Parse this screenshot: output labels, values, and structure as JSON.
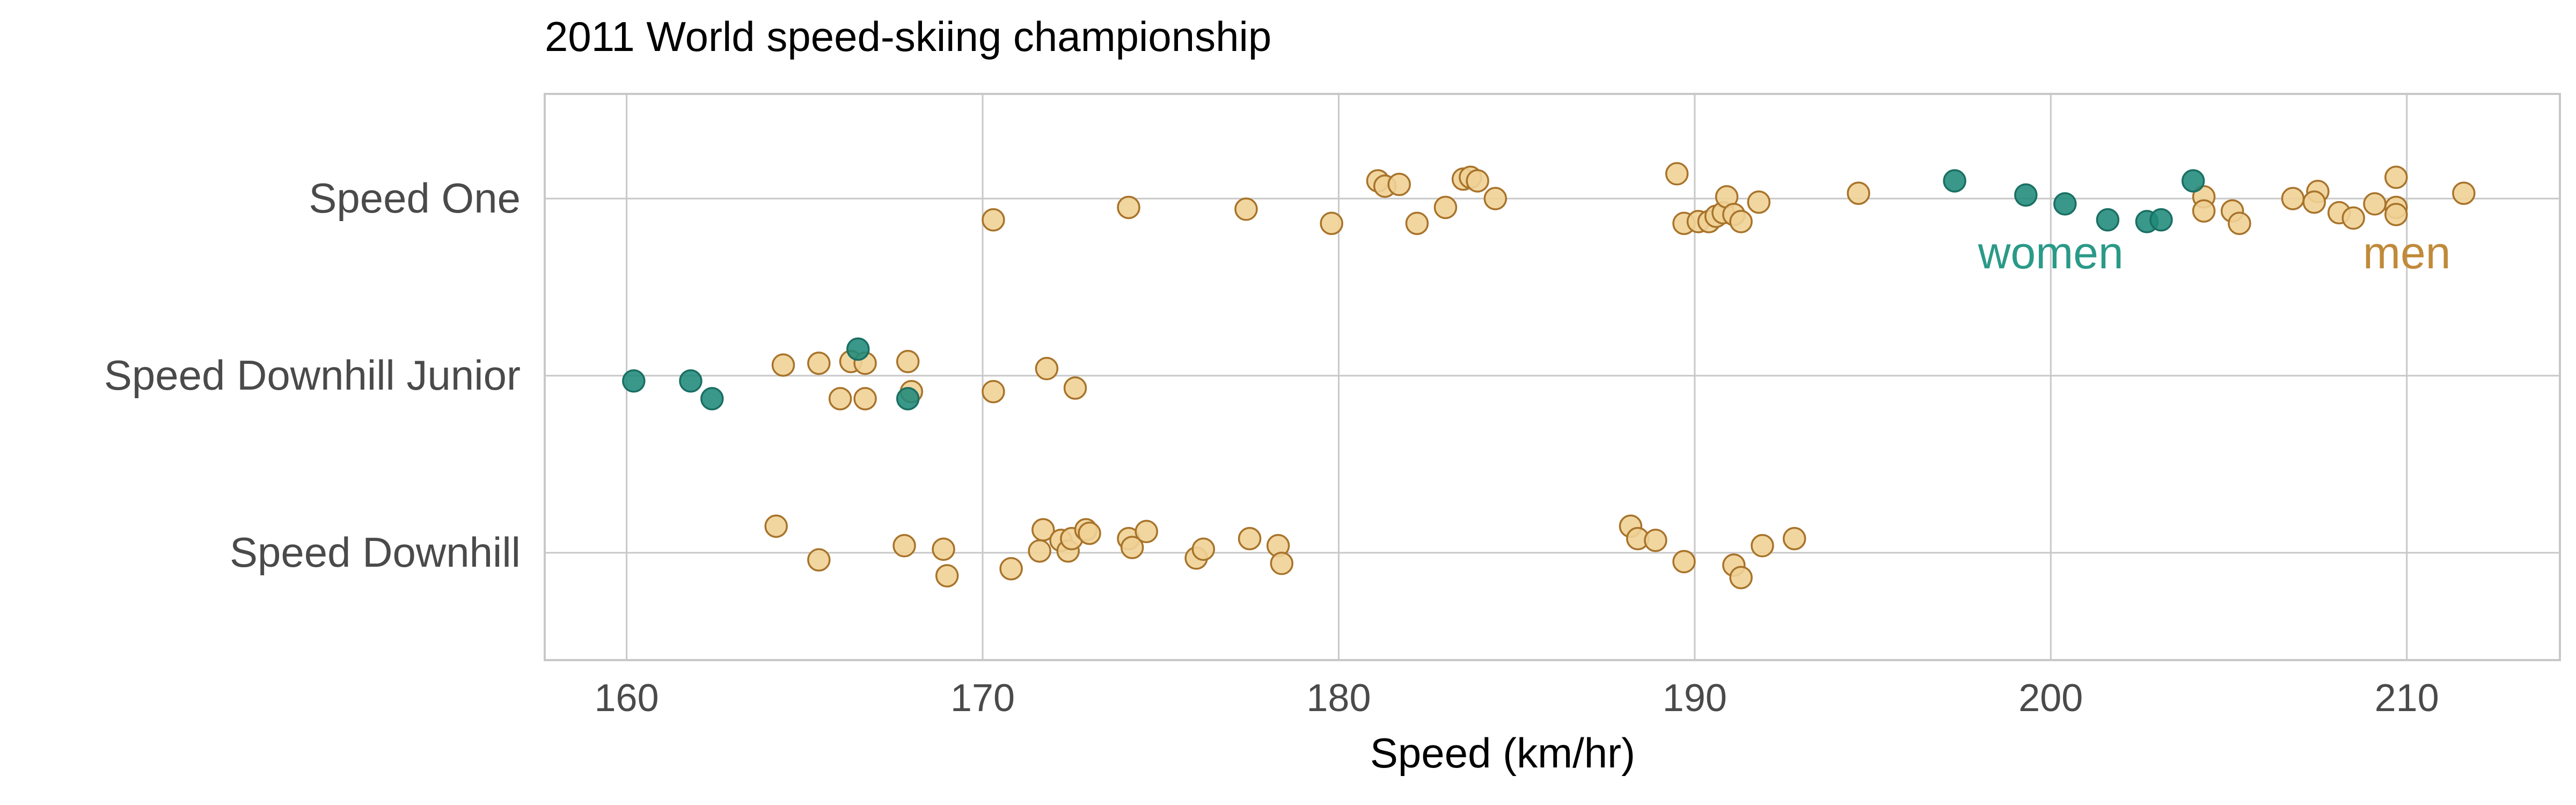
{
  "chart_data": {
    "type": "scatter",
    "title": "2011 World speed-skiing championship",
    "xlabel": "Speed (km/hr)",
    "ylabel": "",
    "xlim": [
      157.7,
      214.3
    ],
    "xticks": [
      160,
      170,
      180,
      190,
      200,
      210
    ],
    "categories": [
      "Speed One",
      "Speed Downhill Junior",
      "Speed Downhill"
    ],
    "grid": true,
    "legend": "direct labels in plot, right side of the Speed One row",
    "colors": {
      "women_fill": "#1f8a7a",
      "women_stroke": "#1a6f63",
      "men_fill": "#f0d196",
      "men_stroke": "#a8732a",
      "women_label": "#2a9a88",
      "men_label": "#c08a3a"
    },
    "labels": [
      {
        "text": "women",
        "series": "women",
        "x": 200.0
      },
      {
        "text": "men",
        "series": "men",
        "x": 210.0
      }
    ],
    "series": [
      {
        "name": "men",
        "points": [
          {
            "category": "Speed One",
            "x": 170.3,
            "jitter": -0.12
          },
          {
            "category": "Speed One",
            "x": 174.1,
            "jitter": -0.05
          },
          {
            "category": "Speed One",
            "x": 177.4,
            "jitter": -0.06
          },
          {
            "category": "Speed One",
            "x": 179.8,
            "jitter": -0.14
          },
          {
            "category": "Speed One",
            "x": 181.1,
            "jitter": 0.1
          },
          {
            "category": "Speed One",
            "x": 181.3,
            "jitter": 0.07
          },
          {
            "category": "Speed One",
            "x": 181.7,
            "jitter": 0.08
          },
          {
            "category": "Speed One",
            "x": 182.2,
            "jitter": -0.14
          },
          {
            "category": "Speed One",
            "x": 183.0,
            "jitter": -0.05
          },
          {
            "category": "Speed One",
            "x": 183.5,
            "jitter": 0.11
          },
          {
            "category": "Speed One",
            "x": 183.7,
            "jitter": 0.12
          },
          {
            "category": "Speed One",
            "x": 183.9,
            "jitter": 0.1
          },
          {
            "category": "Speed One",
            "x": 184.4,
            "jitter": 0.0
          },
          {
            "category": "Speed One",
            "x": 189.5,
            "jitter": 0.14
          },
          {
            "category": "Speed One",
            "x": 189.7,
            "jitter": -0.14
          },
          {
            "category": "Speed One",
            "x": 190.1,
            "jitter": -0.13
          },
          {
            "category": "Speed One",
            "x": 190.4,
            "jitter": -0.13
          },
          {
            "category": "Speed One",
            "x": 190.6,
            "jitter": -0.1
          },
          {
            "category": "Speed One",
            "x": 190.8,
            "jitter": -0.08
          },
          {
            "category": "Speed One",
            "x": 190.9,
            "jitter": 0.01
          },
          {
            "category": "Speed One",
            "x": 191.1,
            "jitter": -0.09
          },
          {
            "category": "Speed One",
            "x": 191.3,
            "jitter": -0.13
          },
          {
            "category": "Speed One",
            "x": 191.8,
            "jitter": -0.02
          },
          {
            "category": "Speed One",
            "x": 194.6,
            "jitter": 0.03
          },
          {
            "category": "Speed One",
            "x": 204.3,
            "jitter": 0.01
          },
          {
            "category": "Speed One",
            "x": 204.3,
            "jitter": -0.07
          },
          {
            "category": "Speed One",
            "x": 205.1,
            "jitter": -0.07
          },
          {
            "category": "Speed One",
            "x": 205.3,
            "jitter": -0.14
          },
          {
            "category": "Speed One",
            "x": 206.8,
            "jitter": 0.0
          },
          {
            "category": "Speed One",
            "x": 207.5,
            "jitter": 0.04
          },
          {
            "category": "Speed One",
            "x": 207.4,
            "jitter": -0.02
          },
          {
            "category": "Speed One",
            "x": 208.1,
            "jitter": -0.08
          },
          {
            "category": "Speed One",
            "x": 208.5,
            "jitter": -0.11
          },
          {
            "category": "Speed One",
            "x": 209.1,
            "jitter": -0.03
          },
          {
            "category": "Speed One",
            "x": 209.7,
            "jitter": 0.12
          },
          {
            "category": "Speed One",
            "x": 209.7,
            "jitter": -0.05
          },
          {
            "category": "Speed One",
            "x": 209.7,
            "jitter": -0.09
          },
          {
            "category": "Speed One",
            "x": 211.6,
            "jitter": 0.03
          },
          {
            "category": "Speed Downhill Junior",
            "x": 164.4,
            "jitter": 0.06
          },
          {
            "category": "Speed Downhill Junior",
            "x": 165.4,
            "jitter": 0.07
          },
          {
            "category": "Speed Downhill Junior",
            "x": 166.0,
            "jitter": -0.13
          },
          {
            "category": "Speed Downhill Junior",
            "x": 166.3,
            "jitter": 0.08
          },
          {
            "category": "Speed Downhill Junior",
            "x": 166.7,
            "jitter": 0.07
          },
          {
            "category": "Speed Downhill Junior",
            "x": 166.7,
            "jitter": -0.13
          },
          {
            "category": "Speed Downhill Junior",
            "x": 167.9,
            "jitter": 0.08
          },
          {
            "category": "Speed Downhill Junior",
            "x": 168.0,
            "jitter": -0.09
          },
          {
            "category": "Speed Downhill Junior",
            "x": 170.3,
            "jitter": -0.09
          },
          {
            "category": "Speed Downhill Junior",
            "x": 171.8,
            "jitter": 0.04
          },
          {
            "category": "Speed Downhill Junior",
            "x": 172.6,
            "jitter": -0.07
          },
          {
            "category": "Speed Downhill",
            "x": 164.2,
            "jitter": 0.15
          },
          {
            "category": "Speed Downhill",
            "x": 165.4,
            "jitter": -0.04
          },
          {
            "category": "Speed Downhill",
            "x": 167.8,
            "jitter": 0.04
          },
          {
            "category": "Speed Downhill",
            "x": 168.9,
            "jitter": 0.02
          },
          {
            "category": "Speed Downhill",
            "x": 169.0,
            "jitter": -0.13
          },
          {
            "category": "Speed Downhill",
            "x": 170.8,
            "jitter": -0.09
          },
          {
            "category": "Speed Downhill",
            "x": 171.6,
            "jitter": 0.01
          },
          {
            "category": "Speed Downhill",
            "x": 171.7,
            "jitter": 0.13
          },
          {
            "category": "Speed Downhill",
            "x": 172.2,
            "jitter": 0.07
          },
          {
            "category": "Speed Downhill",
            "x": 172.4,
            "jitter": 0.01
          },
          {
            "category": "Speed Downhill",
            "x": 172.5,
            "jitter": 0.08
          },
          {
            "category": "Speed Downhill",
            "x": 172.9,
            "jitter": 0.13
          },
          {
            "category": "Speed Downhill",
            "x": 173.0,
            "jitter": 0.11
          },
          {
            "category": "Speed Downhill",
            "x": 174.1,
            "jitter": 0.08
          },
          {
            "category": "Speed Downhill",
            "x": 174.2,
            "jitter": 0.03
          },
          {
            "category": "Speed Downhill",
            "x": 174.6,
            "jitter": 0.12
          },
          {
            "category": "Speed Downhill",
            "x": 176.0,
            "jitter": -0.03
          },
          {
            "category": "Speed Downhill",
            "x": 176.2,
            "jitter": 0.02
          },
          {
            "category": "Speed Downhill",
            "x": 177.5,
            "jitter": 0.08
          },
          {
            "category": "Speed Downhill",
            "x": 178.3,
            "jitter": 0.04
          },
          {
            "category": "Speed Downhill",
            "x": 178.4,
            "jitter": -0.06
          },
          {
            "category": "Speed Downhill",
            "x": 188.2,
            "jitter": 0.15
          },
          {
            "category": "Speed Downhill",
            "x": 188.4,
            "jitter": 0.08
          },
          {
            "category": "Speed Downhill",
            "x": 188.9,
            "jitter": 0.07
          },
          {
            "category": "Speed Downhill",
            "x": 189.7,
            "jitter": -0.05
          },
          {
            "category": "Speed Downhill",
            "x": 191.1,
            "jitter": -0.07
          },
          {
            "category": "Speed Downhill",
            "x": 191.3,
            "jitter": -0.14
          },
          {
            "category": "Speed Downhill",
            "x": 191.9,
            "jitter": 0.04
          },
          {
            "category": "Speed Downhill",
            "x": 192.8,
            "jitter": 0.08
          }
        ]
      },
      {
        "name": "women",
        "points": [
          {
            "category": "Speed One",
            "x": 197.3,
            "jitter": 0.1
          },
          {
            "category": "Speed One",
            "x": 199.3,
            "jitter": 0.02
          },
          {
            "category": "Speed One",
            "x": 200.4,
            "jitter": -0.03
          },
          {
            "category": "Speed One",
            "x": 201.6,
            "jitter": -0.12
          },
          {
            "category": "Speed One",
            "x": 202.7,
            "jitter": -0.13
          },
          {
            "category": "Speed One",
            "x": 203.1,
            "jitter": -0.12
          },
          {
            "category": "Speed One",
            "x": 204.0,
            "jitter": 0.1
          },
          {
            "category": "Speed Downhill Junior",
            "x": 160.2,
            "jitter": -0.03
          },
          {
            "category": "Speed Downhill Junior",
            "x": 161.8,
            "jitter": -0.03
          },
          {
            "category": "Speed Downhill Junior",
            "x": 162.4,
            "jitter": -0.13
          },
          {
            "category": "Speed Downhill Junior",
            "x": 166.5,
            "jitter": 0.15
          },
          {
            "category": "Speed Downhill Junior",
            "x": 167.9,
            "jitter": -0.13
          }
        ]
      }
    ]
  }
}
